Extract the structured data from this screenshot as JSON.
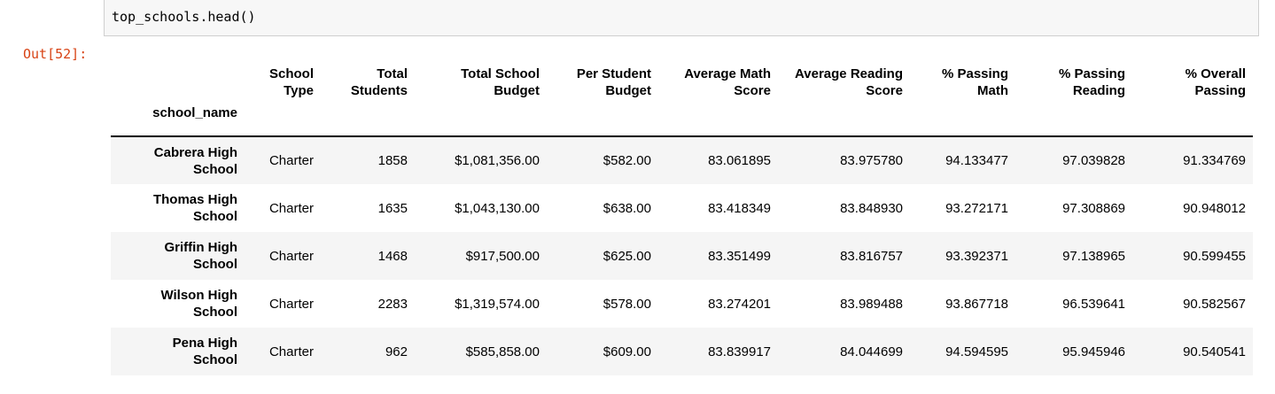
{
  "input": {
    "code": "top_schools.head()"
  },
  "output": {
    "prompt": "Out[52]:"
  },
  "dataframe": {
    "index_name": "school_name",
    "columns": [
      [
        "School",
        "Type"
      ],
      [
        "Total",
        "Students"
      ],
      [
        "Total School",
        "Budget"
      ],
      [
        "Per Student",
        "Budget"
      ],
      [
        "Average Math",
        "Score"
      ],
      [
        "Average Reading",
        "Score"
      ],
      [
        "% Passing",
        "Math"
      ],
      [
        "% Passing",
        "Reading"
      ],
      [
        "% Overall",
        "Passing"
      ]
    ],
    "rows": [
      {
        "index": [
          "Cabrera High",
          "School"
        ],
        "values": [
          "Charter",
          "1858",
          "$1,081,356.00",
          "$582.00",
          "83.061895",
          "83.975780",
          "94.133477",
          "97.039828",
          "91.334769"
        ]
      },
      {
        "index": [
          "Thomas High",
          "School"
        ],
        "values": [
          "Charter",
          "1635",
          "$1,043,130.00",
          "$638.00",
          "83.418349",
          "83.848930",
          "93.272171",
          "97.308869",
          "90.948012"
        ]
      },
      {
        "index": [
          "Griffin High",
          "School"
        ],
        "values": [
          "Charter",
          "1468",
          "$917,500.00",
          "$625.00",
          "83.351499",
          "83.816757",
          "93.392371",
          "97.138965",
          "90.599455"
        ]
      },
      {
        "index": [
          "Wilson High",
          "School"
        ],
        "values": [
          "Charter",
          "2283",
          "$1,319,574.00",
          "$578.00",
          "83.274201",
          "83.989488",
          "93.867718",
          "96.539641",
          "90.582567"
        ]
      },
      {
        "index": [
          "Pena High",
          "School"
        ],
        "values": [
          "Charter",
          "962",
          "$585,858.00",
          "$609.00",
          "83.839917",
          "84.044699",
          "94.594595",
          "95.945946",
          "90.540541"
        ]
      }
    ]
  }
}
